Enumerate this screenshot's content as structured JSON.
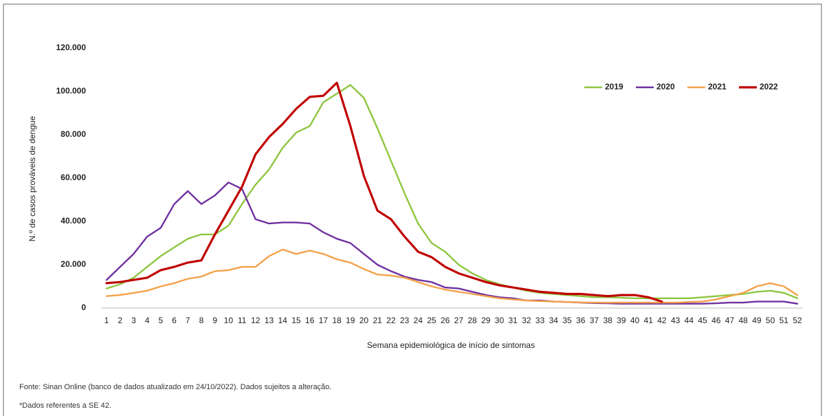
{
  "chart_data": {
    "type": "line",
    "y_label": "N.º de casos prováveis de dengue",
    "x_label": "Semana epidemiológica de início de sintomas",
    "categories": [
      "1",
      "2",
      "3",
      "4",
      "5",
      "6",
      "7",
      "8",
      "9",
      "10",
      "11",
      "12",
      "13",
      "14",
      "15",
      "16",
      "17",
      "18",
      "19",
      "20",
      "21",
      "22",
      "23",
      "24",
      "25",
      "26",
      "27",
      "28",
      "29",
      "30",
      "31",
      "32",
      "33",
      "34",
      "35",
      "36",
      "37",
      "38",
      "39",
      "40",
      "41",
      "42",
      "43",
      "44",
      "45",
      "46",
      "47",
      "48",
      "49",
      "50",
      "51",
      "52"
    ],
    "series": [
      {
        "name": "2019",
        "color": "#8dc63f",
        "values": [
          9000,
          11000,
          14000,
          19000,
          24000,
          28000,
          32000,
          34000,
          34000,
          38000,
          48000,
          57000,
          64000,
          74000,
          81000,
          84000,
          95000,
          99000,
          103000,
          97000,
          83000,
          68000,
          53000,
          39000,
          30000,
          26000,
          20000,
          16000,
          13000,
          11000,
          9500,
          8000,
          7000,
          6500,
          6000,
          5500,
          5000,
          5000,
          4800,
          4500,
          4500,
          4500,
          4500,
          4500,
          5000,
          5500,
          6000,
          6500,
          7500,
          8000,
          7000,
          4500
        ]
      },
      {
        "name": "2020",
        "color": "#7030a0",
        "values": [
          13000,
          19000,
          25000,
          33000,
          37000,
          48000,
          54000,
          48000,
          52000,
          58000,
          55000,
          41000,
          39000,
          39500,
          39500,
          39000,
          35000,
          32000,
          30000,
          25000,
          20000,
          17000,
          14500,
          13000,
          12000,
          9500,
          9000,
          7500,
          6000,
          5000,
          4500,
          3500,
          3500,
          3000,
          2800,
          2500,
          2300,
          2200,
          2000,
          2000,
          2000,
          2000,
          2000,
          2000,
          2000,
          2200,
          2500,
          2500,
          3000,
          3000,
          3000,
          2000
        ]
      },
      {
        "name": "2021",
        "color": "#f4a14a",
        "values": [
          5500,
          6000,
          7000,
          8000,
          10000,
          11500,
          13500,
          14500,
          17000,
          17500,
          19000,
          19000,
          24000,
          27000,
          25000,
          26500,
          25000,
          22500,
          21000,
          18000,
          15500,
          15000,
          14000,
          12000,
          10000,
          8500,
          7500,
          6500,
          5500,
          4500,
          4000,
          3500,
          3200,
          3000,
          2800,
          2600,
          2500,
          2500,
          2500,
          2500,
          2500,
          2500,
          2500,
          2800,
          3000,
          4000,
          5500,
          7000,
          10000,
          11500,
          10000,
          6000
        ]
      },
      {
        "name": "2022",
        "color": "#c00000",
        "dotted_from_index": 37,
        "values": [
          11500,
          12000,
          13000,
          14000,
          17500,
          19000,
          21000,
          22000,
          34000,
          45000,
          56000,
          71000,
          79000,
          85000,
          92000,
          97500,
          98000,
          104000,
          84000,
          61000,
          45000,
          41000,
          33000,
          26000,
          23500,
          19000,
          16000,
          14000,
          12000,
          10500,
          9500,
          8500,
          7500,
          7000,
          6500,
          6500,
          6000,
          5500,
          6000,
          6000,
          5000,
          3000,
          null,
          null,
          null,
          null,
          null,
          null,
          null,
          null,
          null,
          null
        ]
      }
    ],
    "ylim": [
      0,
      120000
    ],
    "yticks": [
      0,
      {
        "value": 20000,
        "label": "20.000"
      },
      {
        "value": 40000,
        "label": "40.000"
      },
      {
        "value": 60000,
        "label": "60.000"
      },
      {
        "value": 80000,
        "label": "80.000"
      },
      {
        "value": 100000,
        "label": "100.000"
      },
      {
        "value": 120000,
        "label": "120.000"
      }
    ],
    "legend": "top-right",
    "notes": [
      "Fonte: Sinan Online (banco de dados atualizado em 24/10/2022). Dados sujeitos a alteração.",
      "*Dados referentes a SE 42."
    ]
  }
}
